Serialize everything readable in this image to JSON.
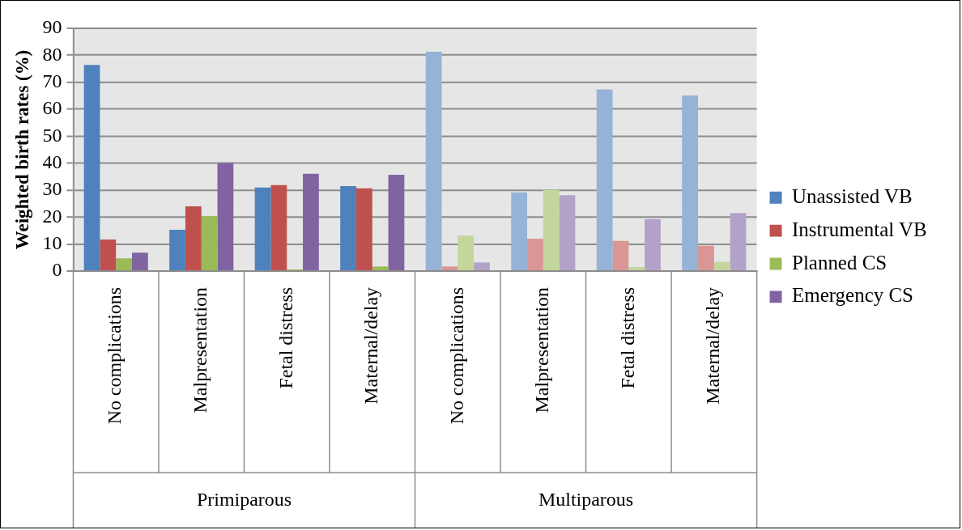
{
  "chart_data": {
    "type": "bar",
    "ylabel": "Weighted birth rates (%)",
    "categories": [
      "No complications",
      "Malpresentation",
      "Fetal distress",
      "Maternal/delay",
      "No complications",
      "Malpresentation",
      "Fetal distress",
      "Maternal/delay"
    ],
    "annotations": [
      "Primiparous",
      "Multiparous"
    ],
    "series": [
      {
        "name": "Unassisted VB",
        "color": "#4f81bd",
        "colors": [
          "#4f81bd",
          "#4f81bd",
          "#4f81bd",
          "#4f81bd",
          "#95b3d7",
          "#95b3d7",
          "#95b3d7",
          "#95b3d7"
        ],
        "values": [
          76.4,
          15.3,
          31.0,
          31.5,
          81.3,
          29.2,
          67.3,
          65.1
        ]
      },
      {
        "name": "Instrumental VB",
        "color": "#c0504d",
        "colors": [
          "#c0504d",
          "#c0504d",
          "#c0504d",
          "#c0504d",
          "#d99694",
          "#d99694",
          "#d99694",
          "#d99694"
        ],
        "values": [
          11.7,
          24.0,
          31.9,
          30.7,
          1.7,
          12.0,
          11.2,
          9.4
        ]
      },
      {
        "name": "Planned CS",
        "color": "#9bbb59",
        "colors": [
          "#9bbb59",
          "#9bbb59",
          "#9bbb59",
          "#9bbb59",
          "#c3d69b",
          "#c3d69b",
          "#c3d69b",
          "#c3d69b"
        ],
        "values": [
          4.7,
          20.4,
          0.6,
          1.7,
          13.1,
          30.1,
          1.5,
          3.4
        ]
      },
      {
        "name": "Emergency CS",
        "color": "#8064a2",
        "colors": [
          "#8064a2",
          "#8064a2",
          "#8064a2",
          "#8064a2",
          "#b3a2c7",
          "#b3a2c7",
          "#b3a2c7",
          "#b3a2c7"
        ],
        "values": [
          6.8,
          40.0,
          36.1,
          35.7,
          3.2,
          28.1,
          19.3,
          21.5
        ]
      }
    ],
    "ylim": [
      0,
      90
    ],
    "yticks": [
      0,
      10,
      20,
      30,
      40,
      50,
      60,
      70,
      80,
      90
    ],
    "grid": "y",
    "legend": "right"
  }
}
